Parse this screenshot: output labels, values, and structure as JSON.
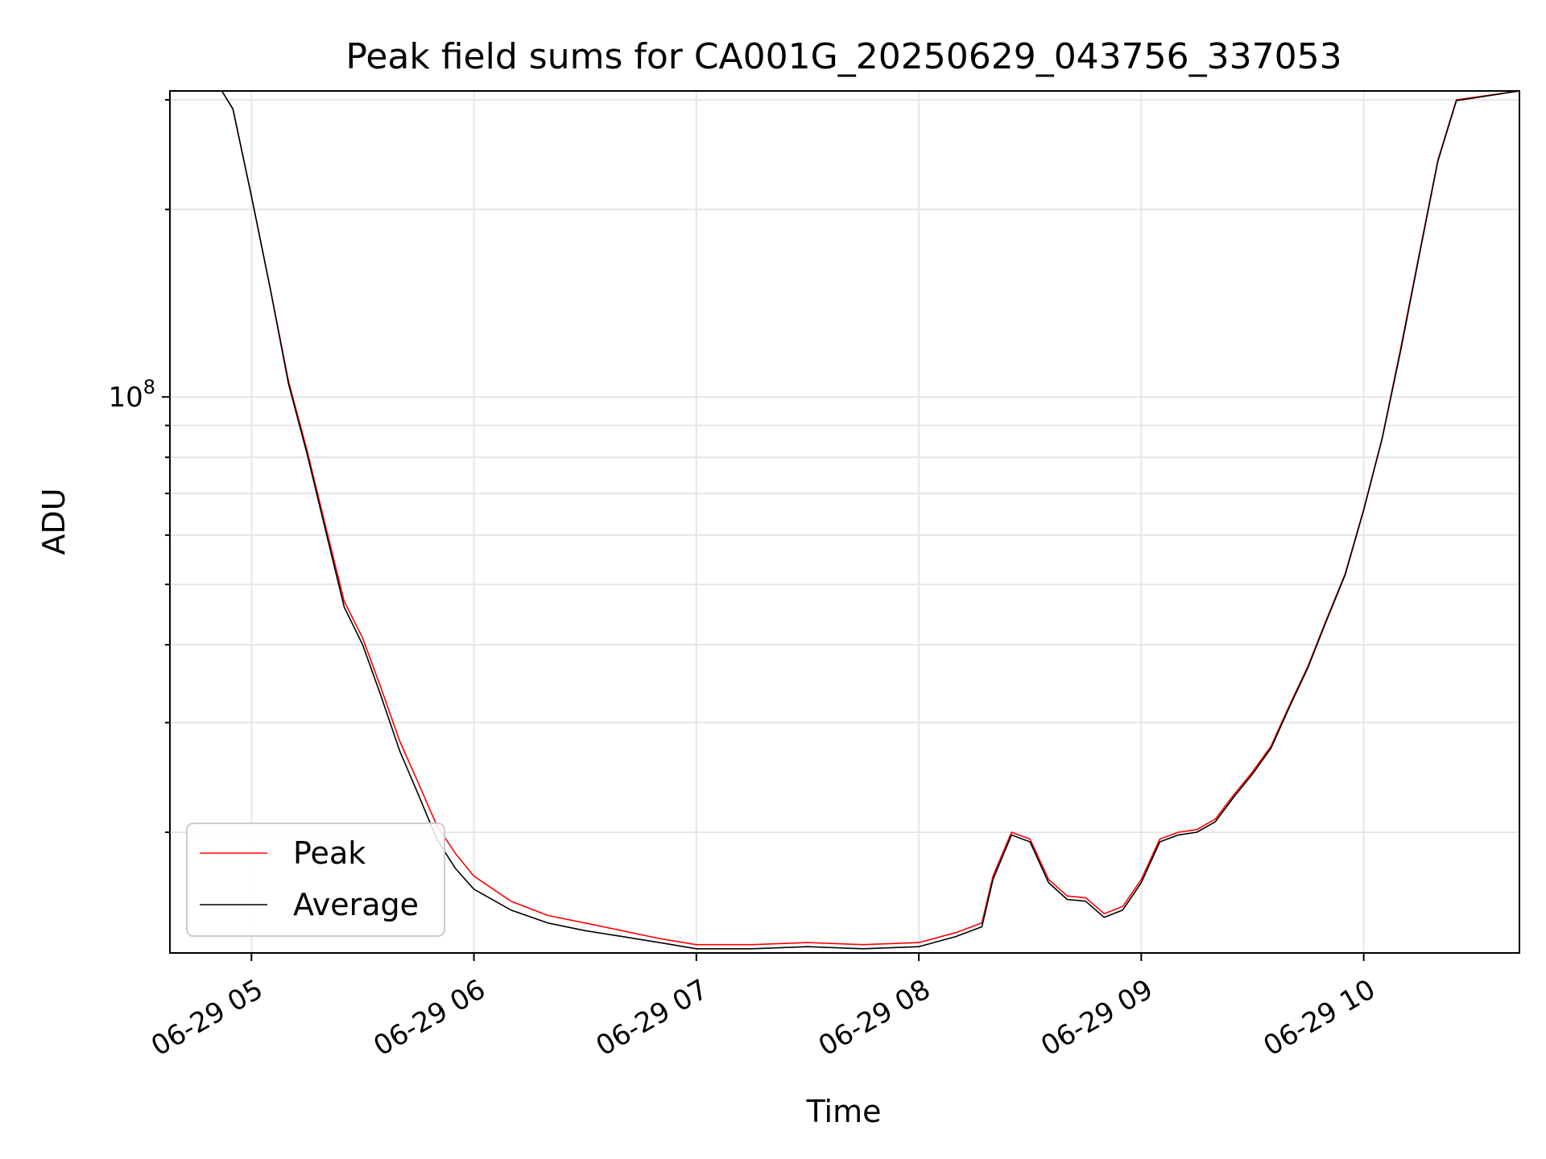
{
  "chart_data": {
    "type": "line",
    "title": "Peak field sums for CA001G_20250629_043756_337053",
    "xlabel": "Time",
    "ylabel": "ADU",
    "y_scale": "log",
    "x_range": [
      "06-29 04:38",
      "06-29 10:42"
    ],
    "ylim": [
      12800000,
      310000000
    ],
    "x_ticks": [
      "06-29 05",
      "06-29 06",
      "06-29 07",
      "06-29 08",
      "06-29 09",
      "06-29 10"
    ],
    "y_tick_major_label": "10^8",
    "grid": true,
    "legend_position": "lower-left",
    "series": [
      {
        "name": "Peak",
        "color": "#ff0000",
        "x": [
          "06-29 04:38",
          "06-29 04:52",
          "06-29 04:55",
          "06-29 05:00",
          "06-29 05:05",
          "06-29 05:10",
          "06-29 05:15",
          "06-29 05:20",
          "06-29 05:25",
          "06-29 05:30",
          "06-29 05:35",
          "06-29 05:40",
          "06-29 05:45",
          "06-29 05:50",
          "06-29 05:55",
          "06-29 06:00",
          "06-29 06:10",
          "06-29 06:20",
          "06-29 06:30",
          "06-29 06:40",
          "06-29 06:50",
          "06-29 07:00",
          "06-29 07:15",
          "06-29 07:30",
          "06-29 07:45",
          "06-29 08:00",
          "06-29 08:10",
          "06-29 08:17",
          "06-29 08:20",
          "06-29 08:25",
          "06-29 08:30",
          "06-29 08:35",
          "06-29 08:40",
          "06-29 08:45",
          "06-29 08:50",
          "06-29 08:55",
          "06-29 09:00",
          "06-29 09:05",
          "06-29 09:10",
          "06-29 09:15",
          "06-29 09:20",
          "06-29 09:25",
          "06-29 09:30",
          "06-29 09:35",
          "06-29 09:40",
          "06-29 09:45",
          "06-29 09:50",
          "06-29 09:55",
          "06-29 10:00",
          "06-29 10:05",
          "06-29 10:10",
          "06-29 10:15",
          "06-29 10:20",
          "06-29 10:25",
          "06-29 10:42"
        ],
        "values": [
          310000000,
          310000000,
          290000000,
          210000000,
          150000000,
          106000000,
          82000000,
          62000000,
          47000000,
          41000000,
          34000000,
          28000000,
          24000000,
          20500000,
          18500000,
          17000000,
          15500000,
          14700000,
          14300000,
          13900000,
          13500000,
          13200000,
          13200000,
          13300000,
          13200000,
          13300000,
          13800000,
          14300000,
          17000000,
          20000000,
          19500000,
          16800000,
          15800000,
          15700000,
          14800000,
          15200000,
          16800000,
          19500000,
          20000000,
          20200000,
          21000000,
          23000000,
          25000000,
          27500000,
          32000000,
          37000000,
          44000000,
          52000000,
          66000000,
          86000000,
          120000000,
          170000000,
          240000000,
          300000000,
          310000000
        ]
      },
      {
        "name": "Average",
        "color": "#000000",
        "x": [
          "06-29 04:38",
          "06-29 04:52",
          "06-29 04:55",
          "06-29 05:00",
          "06-29 05:05",
          "06-29 05:10",
          "06-29 05:15",
          "06-29 05:20",
          "06-29 05:25",
          "06-29 05:30",
          "06-29 05:35",
          "06-29 05:40",
          "06-29 05:45",
          "06-29 05:50",
          "06-29 05:55",
          "06-29 06:00",
          "06-29 06:10",
          "06-29 06:20",
          "06-29 06:30",
          "06-29 06:40",
          "06-29 06:50",
          "06-29 07:00",
          "06-29 07:15",
          "06-29 07:30",
          "06-29 07:45",
          "06-29 08:00",
          "06-29 08:10",
          "06-29 08:17",
          "06-29 08:20",
          "06-29 08:25",
          "06-29 08:30",
          "06-29 08:35",
          "06-29 08:40",
          "06-29 08:45",
          "06-29 08:50",
          "06-29 08:55",
          "06-29 09:00",
          "06-29 09:05",
          "06-29 09:10",
          "06-29 09:15",
          "06-29 09:20",
          "06-29 09:25",
          "06-29 09:30",
          "06-29 09:35",
          "06-29 09:40",
          "06-29 09:45",
          "06-29 09:50",
          "06-29 09:55",
          "06-29 10:00",
          "06-29 10:05",
          "06-29 10:10",
          "06-29 10:15",
          "06-29 10:20",
          "06-29 10:25",
          "06-29 10:42"
        ],
        "values": [
          310000000,
          310000000,
          290000000,
          210000000,
          150000000,
          105000000,
          81000000,
          61000000,
          46000000,
          40000000,
          33000000,
          27000000,
          23000000,
          19500000,
          17500000,
          16200000,
          15000000,
          14300000,
          13900000,
          13600000,
          13300000,
          13000000,
          13000000,
          13100000,
          13000000,
          13100000,
          13600000,
          14100000,
          16800000,
          19800000,
          19300000,
          16600000,
          15600000,
          15500000,
          14600000,
          15000000,
          16600000,
          19300000,
          19800000,
          20000000,
          20800000,
          22800000,
          24800000,
          27300000,
          31800000,
          36800000,
          43800000,
          51800000,
          65800000,
          85800000,
          119000000,
          169000000,
          239000000,
          299000000,
          310000000
        ]
      }
    ]
  }
}
